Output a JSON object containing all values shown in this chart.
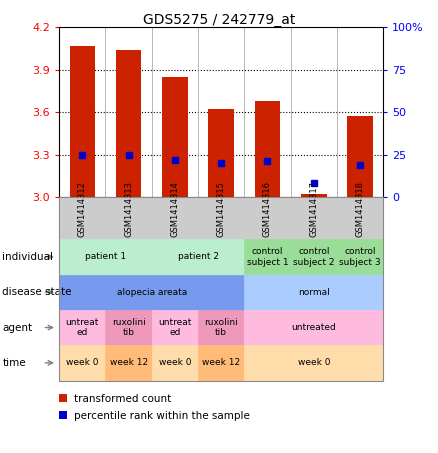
{
  "title": "GDS5275 / 242779_at",
  "samples": [
    "GSM1414312",
    "GSM1414313",
    "GSM1414314",
    "GSM1414315",
    "GSM1414316",
    "GSM1414317",
    "GSM1414318"
  ],
  "bar_values": [
    4.07,
    4.04,
    3.85,
    3.62,
    3.68,
    3.02,
    3.57
  ],
  "bar_base": 3.0,
  "percentile_values": [
    25,
    25,
    22,
    20,
    21,
    8,
    19
  ],
  "ylim_left": [
    3.0,
    4.2
  ],
  "ylim_right": [
    0,
    100
  ],
  "yticks_left": [
    3.0,
    3.3,
    3.6,
    3.9,
    4.2
  ],
  "yticks_right": [
    0,
    25,
    50,
    75,
    100
  ],
  "bar_color": "#cc2200",
  "dot_color": "#0000cc",
  "sample_label_bg": "#cccccc",
  "annot_rows": [
    {
      "key": "individual",
      "label": "individual",
      "groups": [
        {
          "cols": [
            0,
            1
          ],
          "text": "patient 1",
          "color": "#bbeecc"
        },
        {
          "cols": [
            2,
            3
          ],
          "text": "patient 2",
          "color": "#bbeecc"
        },
        {
          "cols": [
            4
          ],
          "text": "control\nsubject 1",
          "color": "#99dd99"
        },
        {
          "cols": [
            5
          ],
          "text": "control\nsubject 2",
          "color": "#99dd99"
        },
        {
          "cols": [
            6
          ],
          "text": "control\nsubject 3",
          "color": "#99dd99"
        }
      ]
    },
    {
      "key": "disease_state",
      "label": "disease state",
      "groups": [
        {
          "cols": [
            0,
            1,
            2,
            3
          ],
          "text": "alopecia areata",
          "color": "#7799ee"
        },
        {
          "cols": [
            4,
            5,
            6
          ],
          "text": "normal",
          "color": "#aaccff"
        }
      ]
    },
    {
      "key": "agent",
      "label": "agent",
      "groups": [
        {
          "cols": [
            0
          ],
          "text": "untreat\ned",
          "color": "#ffbbdd"
        },
        {
          "cols": [
            1
          ],
          "text": "ruxolini\ntib",
          "color": "#ee99bb"
        },
        {
          "cols": [
            2
          ],
          "text": "untreat\ned",
          "color": "#ffbbdd"
        },
        {
          "cols": [
            3
          ],
          "text": "ruxolini\ntib",
          "color": "#ee99bb"
        },
        {
          "cols": [
            4,
            5,
            6
          ],
          "text": "untreated",
          "color": "#ffbbdd"
        }
      ]
    },
    {
      "key": "time",
      "label": "time",
      "groups": [
        {
          "cols": [
            0
          ],
          "text": "week 0",
          "color": "#ffddaa"
        },
        {
          "cols": [
            1
          ],
          "text": "week 12",
          "color": "#ffbb77"
        },
        {
          "cols": [
            2
          ],
          "text": "week 0",
          "color": "#ffddaa"
        },
        {
          "cols": [
            3
          ],
          "text": "week 12",
          "color": "#ffbb77"
        },
        {
          "cols": [
            4,
            5,
            6
          ],
          "text": "week 0",
          "color": "#ffddaa"
        }
      ]
    }
  ],
  "legend": [
    {
      "color": "#cc2200",
      "label": "transformed count"
    },
    {
      "color": "#0000cc",
      "label": "percentile rank within the sample"
    }
  ]
}
